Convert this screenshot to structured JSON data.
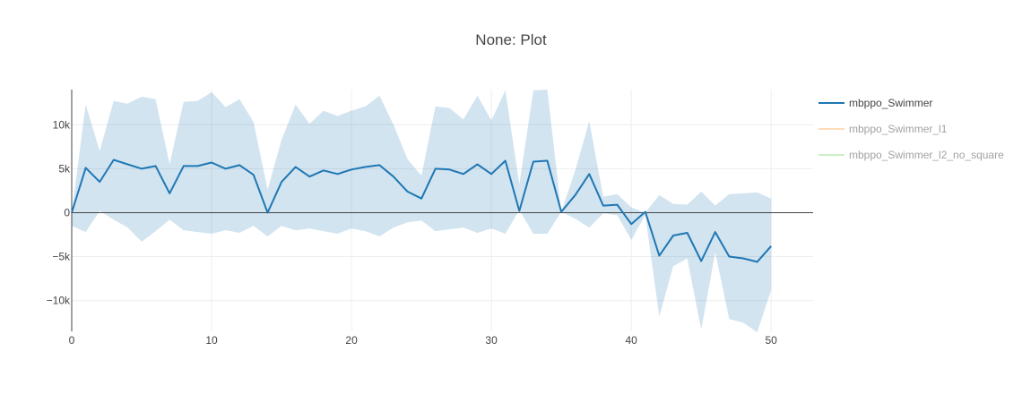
{
  "chart_data": {
    "type": "line",
    "title": "None: Plot",
    "xlabel": "",
    "ylabel": "",
    "xlim": [
      0,
      53
    ],
    "ylim": [
      -13500,
      14000
    ],
    "x_ticks": [
      0,
      10,
      20,
      30,
      40,
      50
    ],
    "x_tick_labels": [
      "0",
      "10",
      "20",
      "30",
      "40",
      "50"
    ],
    "y_ticks": [
      -10000,
      -5000,
      0,
      5000,
      10000
    ],
    "y_tick_labels": [
      "−10k",
      "−5k",
      "0",
      "5k",
      "10k"
    ],
    "grid": true,
    "legend_position": "right",
    "series": [
      {
        "name": "mbppo_Swimmer",
        "color": "#1f77b4",
        "band_color": "#1f77b4",
        "visible": true,
        "x": [
          0,
          1,
          2,
          3,
          4,
          5,
          6,
          7,
          8,
          9,
          10,
          11,
          12,
          13,
          14,
          15,
          16,
          17,
          18,
          19,
          20,
          21,
          22,
          23,
          24,
          25,
          26,
          27,
          28,
          29,
          30,
          31,
          32,
          33,
          34,
          35,
          36,
          37,
          38,
          39,
          40,
          41,
          42,
          43,
          44,
          45,
          46,
          47,
          48,
          49,
          50
        ],
        "y": [
          0,
          5100,
          3500,
          6000,
          5500,
          5000,
          5300,
          2200,
          5300,
          5300,
          5700,
          5000,
          5400,
          4300,
          0,
          3500,
          5200,
          4100,
          4800,
          4400,
          4900,
          5200,
          5400,
          4100,
          2400,
          1600,
          5000,
          4900,
          4400,
          5500,
          4400,
          5900,
          200,
          5800,
          5900,
          100,
          2000,
          4400,
          800,
          900,
          -1300,
          100,
          -4900,
          -2600,
          -2300,
          -5500,
          -2200,
          -5000,
          -5200,
          -5600,
          -3800
        ],
        "upper": [
          0,
          12300,
          7000,
          12700,
          12400,
          13200,
          12900,
          5500,
          12600,
          12700,
          13700,
          12000,
          12900,
          10300,
          2600,
          8300,
          12300,
          10100,
          11600,
          11000,
          11600,
          12100,
          13300,
          10000,
          6100,
          4200,
          12100,
          11900,
          10600,
          13300,
          10500,
          13900,
          3200,
          13900,
          14000,
          100,
          4800,
          10400,
          1800,
          2100,
          600,
          0,
          2000,
          1000,
          900,
          2400,
          800,
          2100,
          2200,
          2300,
          1600
        ],
        "lower": [
          -1500,
          -2200,
          200,
          -800,
          -1700,
          -3300,
          -2100,
          -800,
          -2000,
          -2200,
          -2400,
          -2000,
          -2300,
          -1500,
          -2700,
          -1500,
          -2000,
          -1800,
          -2100,
          -2400,
          -1800,
          -2100,
          -2700,
          -1700,
          -1100,
          -900,
          -2100,
          -1900,
          -1700,
          -2300,
          -1800,
          -2400,
          300,
          -2400,
          -2400,
          100,
          -700,
          -1700,
          -100,
          -300,
          -3100,
          -300,
          -11800,
          -6100,
          -5200,
          -13300,
          -4500,
          -12100,
          -12500,
          -13600,
          -8800
        ]
      },
      {
        "name": "mbppo_Swimmer_l1",
        "color": "#ffbb78",
        "visible": false
      },
      {
        "name": "mbppo_Swimmer_l2_no_square",
        "color": "#98df8a",
        "visible": false
      }
    ]
  }
}
